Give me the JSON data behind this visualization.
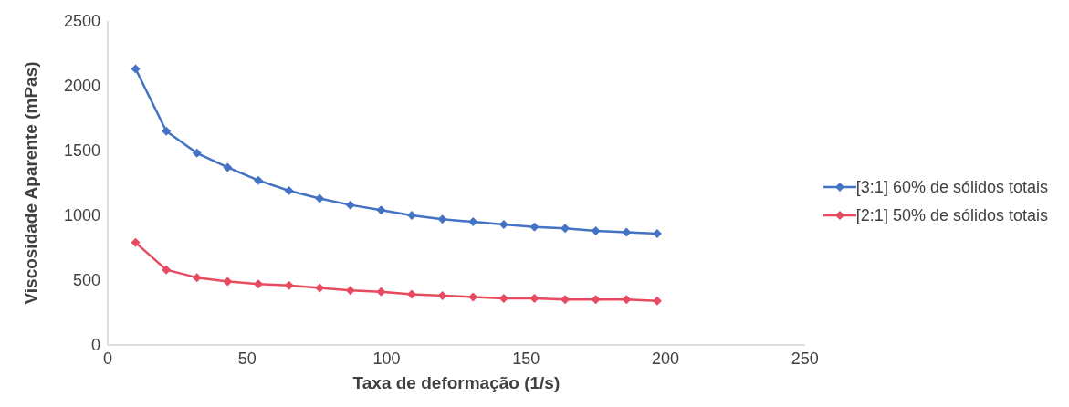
{
  "chart_data": {
    "type": "line",
    "xlabel": "Taxa de deformação (1/s)",
    "ylabel": "Viscosidade Aparente (mPas)",
    "x": [
      10,
      21,
      32,
      43,
      54,
      65,
      76,
      87,
      98,
      109,
      120,
      131,
      142,
      153,
      164,
      175,
      186,
      197
    ],
    "series": [
      {
        "name": "[3:1] 60% de sólidos totais",
        "color": "#4472c4",
        "values": [
          2130,
          1650,
          1480,
          1370,
          1270,
          1190,
          1130,
          1080,
          1040,
          1000,
          970,
          950,
          930,
          910,
          900,
          880,
          870,
          860
        ]
      },
      {
        "name": "[2:1] 50% de sólidos totais",
        "color": "#e84a5f",
        "values": [
          790,
          580,
          520,
          490,
          470,
          460,
          440,
          420,
          410,
          390,
          380,
          370,
          360,
          360,
          350,
          350,
          350,
          340
        ]
      }
    ],
    "xlim": [
      0,
      250
    ],
    "xticks": [
      0,
      50,
      100,
      150,
      200,
      250
    ],
    "ylim": [
      0,
      2500
    ],
    "yticks": [
      0,
      500,
      1000,
      1500,
      2000,
      2500
    ],
    "grid": false,
    "legend": "right",
    "marker": "diamond",
    "line_style": "solid"
  }
}
